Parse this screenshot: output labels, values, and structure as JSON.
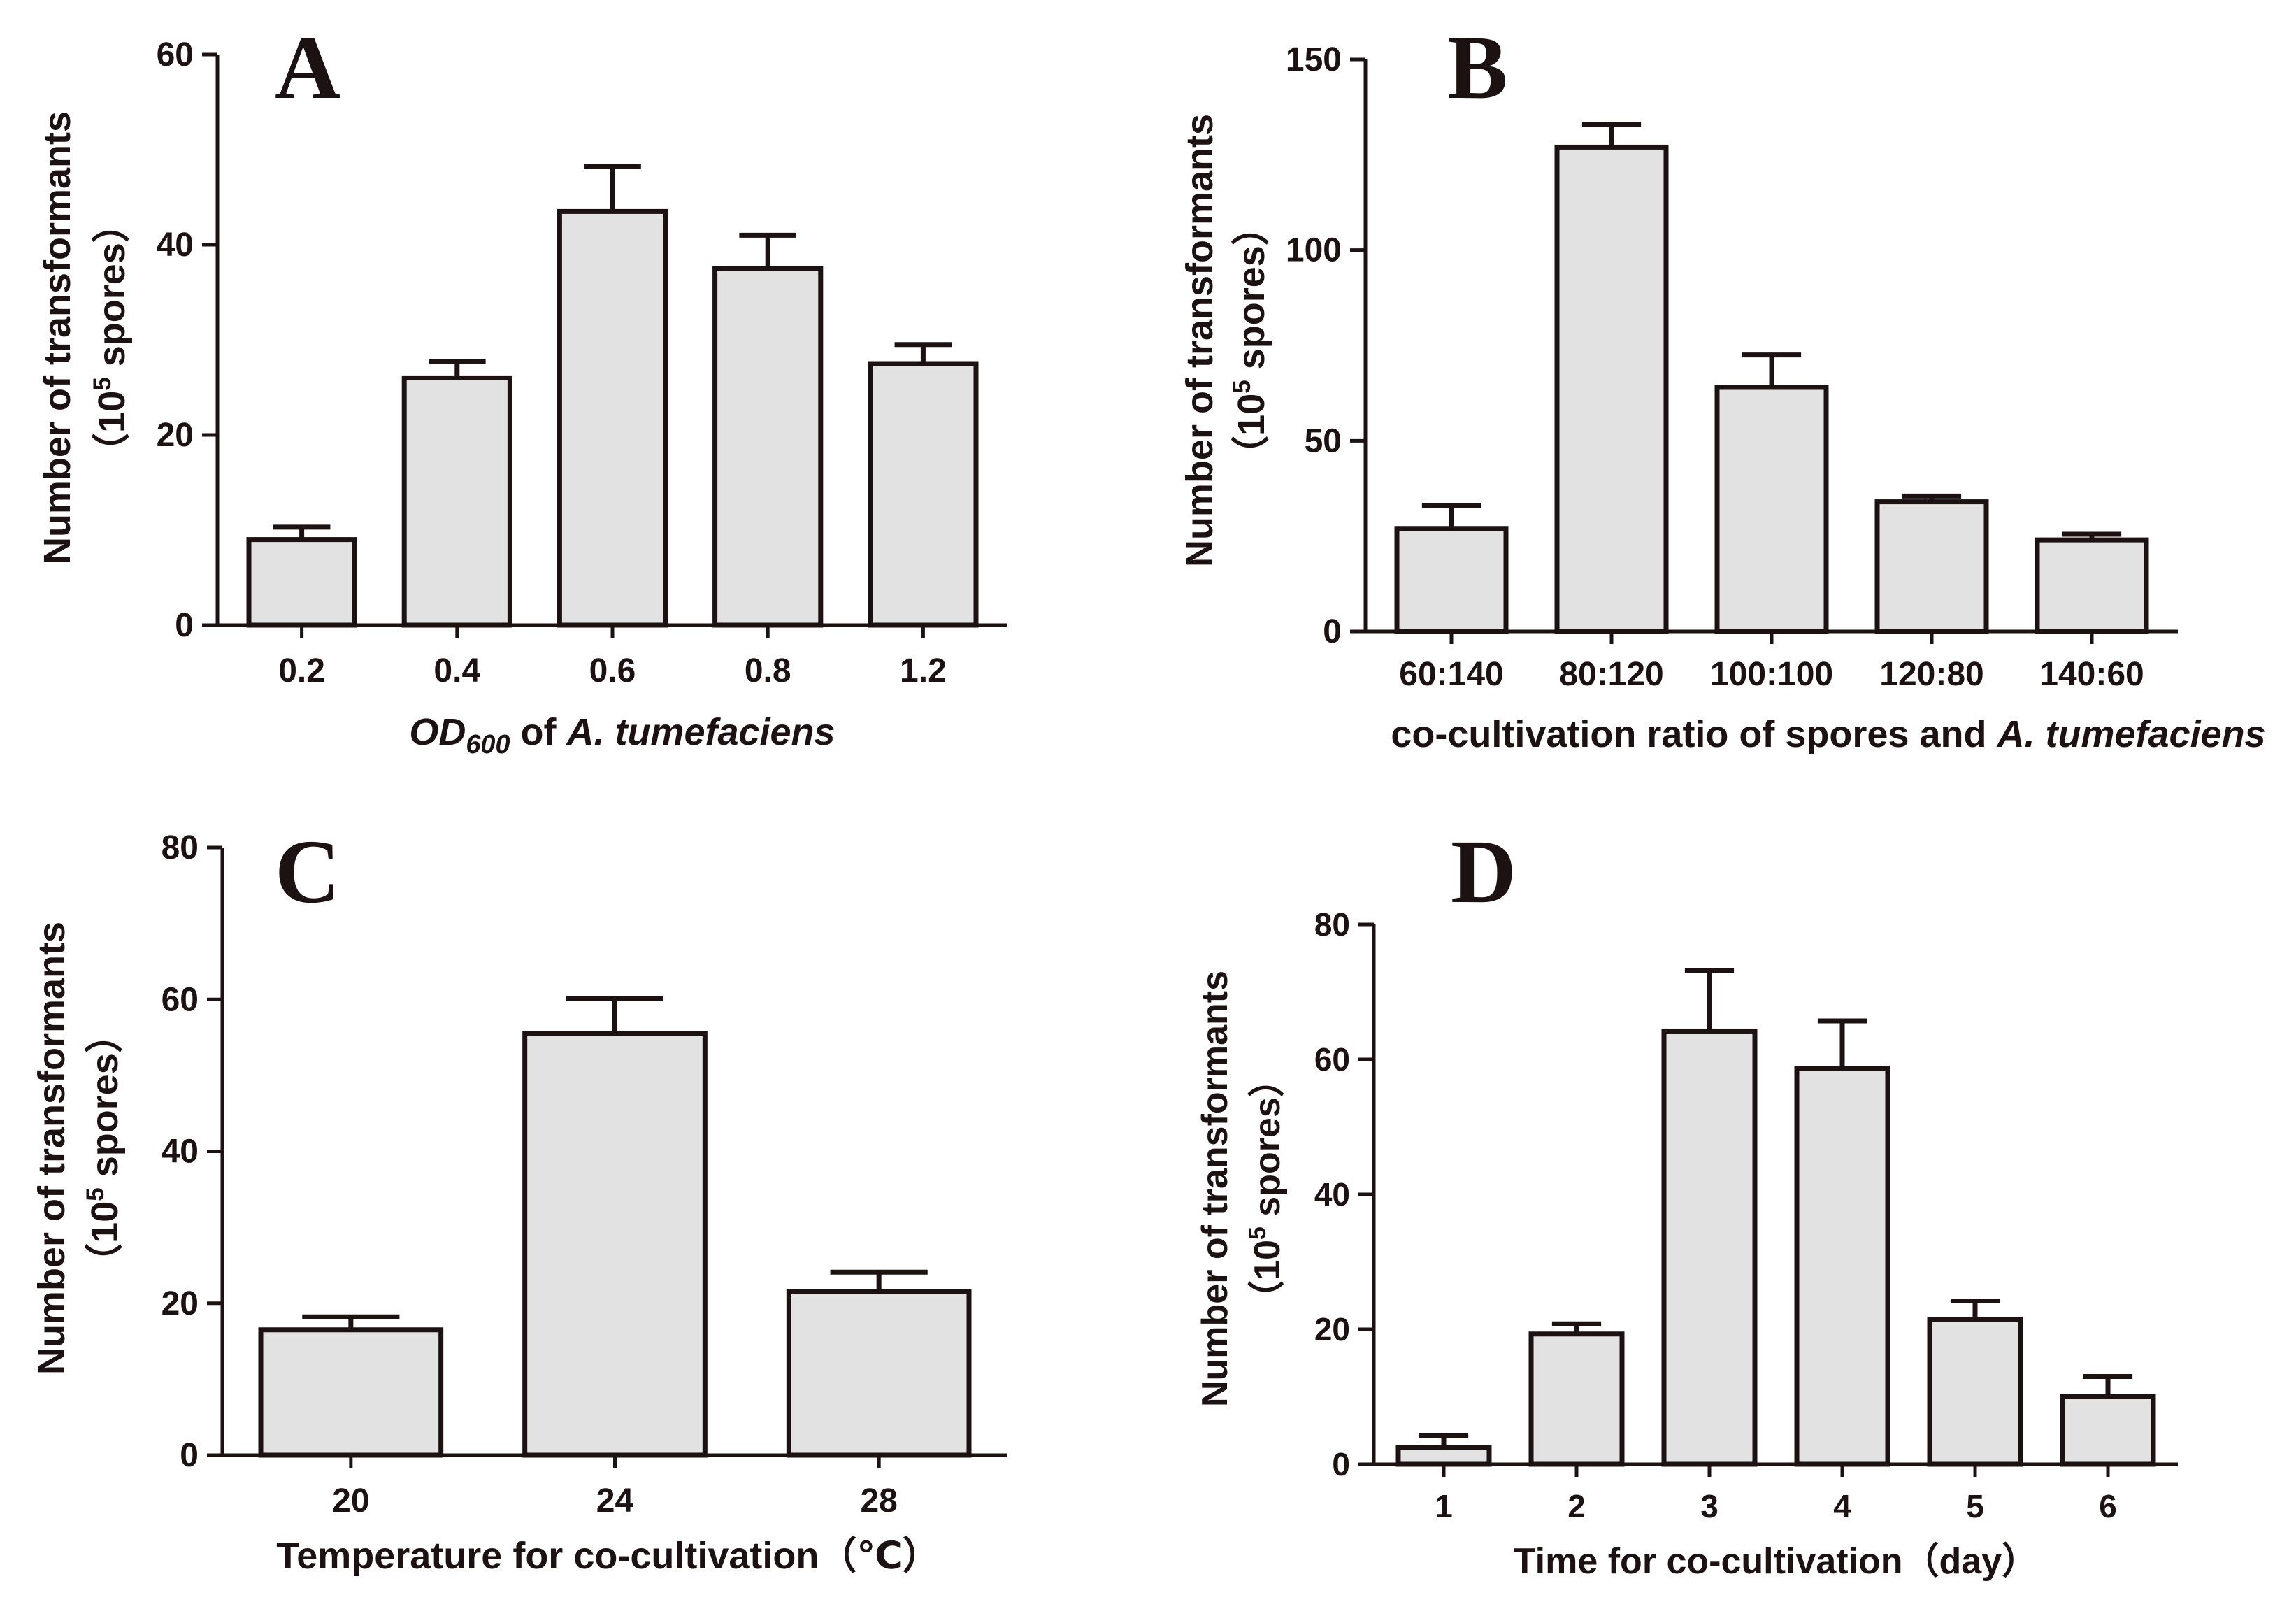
{
  "colors": {
    "bar_fill": "#e2e2e2",
    "ink": "#1c1212",
    "background": "#ffffff"
  },
  "chart_data": [
    {
      "panel": "A",
      "type": "bar",
      "ylabel_line1": "Number of transformants",
      "ylabel_line2": {
        "open": "（10",
        "sup": "5",
        "close": " spores）"
      },
      "xlabel": [
        {
          "text": "OD",
          "italic": true
        },
        {
          "text": "600",
          "sub": true,
          "italic": true
        },
        {
          "text": " of "
        },
        {
          "text": "A. tumefaciens",
          "italic": true
        }
      ],
      "categories": [
        "0.2",
        "0.4",
        "0.6",
        "0.8",
        "1.2"
      ],
      "values": [
        9,
        26,
        43.5,
        37.5,
        27.5
      ],
      "errors": [
        1.3,
        1.7,
        4.7,
        3.5,
        2.0
      ],
      "ylim": [
        0,
        60
      ],
      "yticks": [
        "0",
        "20",
        "40",
        "60"
      ]
    },
    {
      "panel": "B",
      "type": "bar",
      "ylabel_line1": "Number of transformants",
      "ylabel_line2": {
        "open": "（10",
        "sup": "5",
        "close": " spores）"
      },
      "xlabel": [
        {
          "text": "co-cultivation ratio of spores and "
        },
        {
          "text": "A. tumefaciens",
          "italic": true
        }
      ],
      "categories": [
        "60:140",
        "80:120",
        "100:100",
        "120:80",
        "140:60"
      ],
      "values": [
        27,
        127,
        64,
        34,
        24
      ],
      "errors": [
        6,
        6,
        8.5,
        1.5,
        1.5
      ],
      "ylim": [
        0,
        150
      ],
      "yticks": [
        "0",
        "50",
        "100",
        "150"
      ]
    },
    {
      "panel": "C",
      "type": "bar",
      "ylabel_line1": "Number of transformants",
      "ylabel_line2": {
        "open": "（10",
        "sup": "5",
        "close": " spores）"
      },
      "xlabel": [
        {
          "text": "Temperature for co-cultivation（℃）"
        }
      ],
      "categories": [
        "20",
        "24",
        "28"
      ],
      "values": [
        16.5,
        55.5,
        21.5
      ],
      "errors": [
        1.7,
        4.6,
        2.6
      ],
      "ylim": [
        0,
        80
      ],
      "yticks": [
        "0",
        "20",
        "40",
        "60",
        "80"
      ]
    },
    {
      "panel": "D",
      "type": "bar",
      "ylabel_line1": "Number of transformants",
      "ylabel_line2": {
        "open": "（10",
        "sup": "5",
        "close": " spores）"
      },
      "xlabel": [
        {
          "text": "Time for co-cultivation（day）"
        }
      ],
      "categories": [
        "1",
        "2",
        "3",
        "4",
        "5",
        "6"
      ],
      "values": [
        2.5,
        19.3,
        64.2,
        58.7,
        21.5,
        10
      ],
      "errors": [
        1.7,
        1.5,
        9,
        7,
        2.7,
        3
      ],
      "ylim": [
        0,
        80
      ],
      "yticks": [
        "0",
        "20",
        "40",
        "60",
        "80"
      ]
    }
  ]
}
